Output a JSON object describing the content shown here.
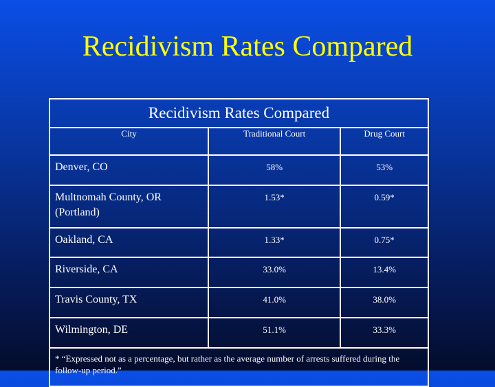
{
  "slide": {
    "title": "Recidivism Rates Compared"
  },
  "table": {
    "caption": "Recidivism Rates Compared",
    "headers": [
      "City",
      "Traditional Court",
      "Drug Court"
    ],
    "rows": [
      {
        "city": "Denver, CO",
        "traditional": "58%",
        "drug": "53%"
      },
      {
        "city": "Multnomah County, OR (Portland)",
        "traditional": "1.53*",
        "drug": "0.59*"
      },
      {
        "city": "Oakland, CA",
        "traditional": "1.33*",
        "drug": "0.75*"
      },
      {
        "city": "Riverside, CA",
        "traditional": "33.0%",
        "drug": "13.4%"
      },
      {
        "city": "Travis County, TX",
        "traditional": "41.0%",
        "drug": "38.0%"
      },
      {
        "city": "Wilmington, DE",
        "traditional": "51.1%",
        "drug": "33.3%"
      }
    ],
    "footnote": "* “Expressed not as a percentage, but rather as the average number of arrests suffered during the follow-up period.”"
  },
  "colors": {
    "title": "#ffff00",
    "text": "#ffffff",
    "background_top": "#0a4ee6",
    "background_bottom": "#030c2c"
  }
}
